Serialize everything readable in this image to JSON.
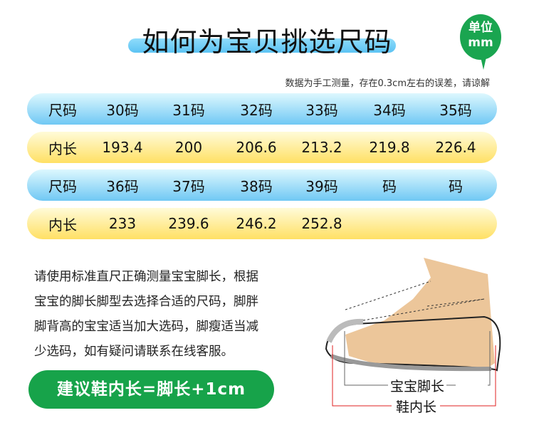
{
  "title": "如何为宝贝挑选尺码",
  "unit_badge": {
    "line1": "单位",
    "line2": "mm",
    "color": "#1aa550"
  },
  "note": "数据为手工测量，存在0.3cm左右的误差，请谅解",
  "rows": [
    {
      "type": "size",
      "label": "尺码",
      "values": [
        "30码",
        "31码",
        "32码",
        "33码",
        "34码",
        "35码"
      ]
    },
    {
      "type": "length",
      "label": "内长",
      "values": [
        "193.4",
        "200",
        "206.6",
        "213.2",
        "219.8",
        "226.4"
      ]
    },
    {
      "type": "size",
      "label": "尺码",
      "values": [
        "36码",
        "37码",
        "38码",
        "39码",
        "码",
        "码"
      ]
    },
    {
      "type": "length",
      "label": "内长",
      "values": [
        "233",
        "239.6",
        "246.2",
        "252.8",
        "",
        ""
      ]
    }
  ],
  "instructions": [
    "请使用标准直尺正确测量宝宝脚长，根据",
    "宝宝的脚长脚型去选择合适的尺码，脚胖",
    "脚背高的宝宝适当加大选码，脚瘦适当减",
    "少选码，如有疑问请联系在线客服。"
  ],
  "advice": "建议鞋内长=脚长+1cm",
  "diagram": {
    "foot_length_label": "宝宝脚长",
    "shoe_inner_length_label": "鞋内长"
  }
}
